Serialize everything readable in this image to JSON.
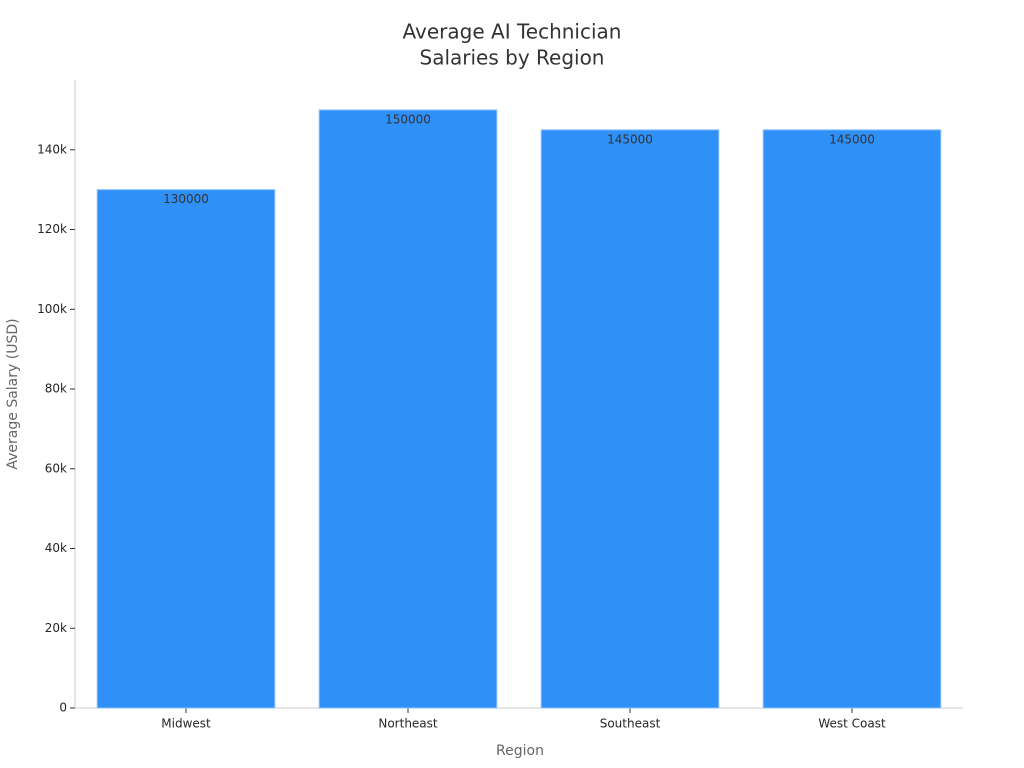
{
  "chart_data": {
    "type": "bar",
    "title": [
      "Average AI Technician",
      "Salaries by Region"
    ],
    "x_label": "Region",
    "y_label": "Average Salary (USD)",
    "categories": [
      "Midwest",
      "Northeast",
      "Southeast",
      "West Coast"
    ],
    "values": [
      130000,
      150000,
      145000,
      145000
    ],
    "color": "#2f90f8",
    "ylim": [
      0,
      157500
    ],
    "yticks": [
      0,
      {
        "value": 20000,
        "label": "20k"
      },
      {
        "value": 40000,
        "label": "40k"
      },
      {
        "value": 60000,
        "label": "60k"
      },
      {
        "value": 80000,
        "label": "80k"
      },
      {
        "value": 100000,
        "label": "100k"
      },
      {
        "value": 120000,
        "label": "120k"
      },
      {
        "value": 140000,
        "label": "140k"
      }
    ],
    "grid": false
  }
}
